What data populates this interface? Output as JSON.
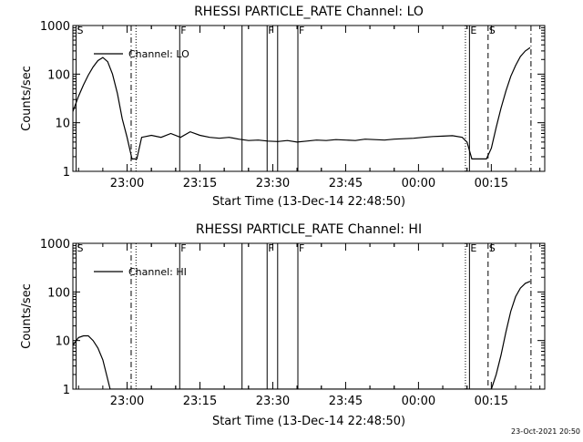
{
  "chart_data": [
    {
      "type": "line",
      "title": "RHESSI PARTICLE_RATE Channel: LO",
      "xlabel": "Start Time (13-Dec-14 22:48:50)",
      "ylabel": "Counts/sec",
      "yscale": "log",
      "ylim": [
        1,
        1000
      ],
      "xlim": [
        "22:48:50",
        "00:26:00"
      ],
      "x_ticks": [
        "23:00",
        "23:15",
        "23:30",
        "23:45",
        "00:00",
        "00:15"
      ],
      "y_ticks": [
        "1",
        "10",
        "100",
        "1000"
      ],
      "legend": {
        "label": "Channel: LO",
        "position": "top-left"
      },
      "grid": false,
      "event_markers": [
        {
          "time": "22:49:30",
          "style": "solid",
          "label": "S"
        },
        {
          "time": "23:00:50",
          "style": "dashdot",
          "label": ""
        },
        {
          "time": "23:01:50",
          "style": "dotted",
          "label": ""
        },
        {
          "time": "23:10:50",
          "style": "solid",
          "label": "F"
        },
        {
          "time": "23:23:40",
          "style": "solid",
          "label": ""
        },
        {
          "time": "23:28:50",
          "style": "solid",
          "label": "F"
        },
        {
          "time": "23:31:00",
          "style": "solid",
          "label": ""
        },
        {
          "time": "23:35:10",
          "style": "solid",
          "label": "F"
        },
        {
          "time": "00:09:40",
          "style": "dotted",
          "label": ""
        },
        {
          "time": "00:10:30",
          "style": "solid",
          "label": "E"
        },
        {
          "time": "00:14:20",
          "style": "dashed",
          "label": "S"
        },
        {
          "time": "00:23:10",
          "style": "dashdot",
          "label": ""
        }
      ],
      "series": [
        {
          "x": [
            "22:48:50",
            "22:50:00",
            "22:51:00",
            "22:52:00",
            "22:53:00",
            "22:54:00",
            "22:55:00",
            "22:56:00",
            "22:57:00",
            "22:58:00",
            "22:59:00",
            "23:00:00",
            "23:01:00",
            "23:02:00",
            "23:03:00",
            "23:05:00",
            "23:07:00",
            "23:09:00",
            "23:11:00",
            "23:13:00",
            "23:15:00",
            "23:17:00",
            "23:19:00",
            "23:21:00",
            "23:23:00",
            "23:25:00",
            "23:27:00",
            "23:29:00",
            "23:31:00",
            "23:33:00",
            "23:35:00",
            "23:37:00",
            "23:39:00",
            "23:41:00",
            "23:43:00",
            "23:45:00",
            "23:47:00",
            "23:49:00",
            "23:51:00",
            "23:53:00",
            "23:55:00",
            "23:57:00",
            "23:59:00",
            "00:01:00",
            "00:03:00",
            "00:05:00",
            "00:07:00",
            "00:09:00",
            "00:10:00",
            "00:11:00",
            "00:12:00",
            "00:13:00",
            "00:14:00",
            "00:15:00",
            "00:16:00",
            "00:17:00",
            "00:18:00",
            "00:19:00",
            "00:20:00",
            "00:21:00",
            "00:22:00",
            "00:23:00"
          ],
          "y": [
            17,
            35,
            60,
            95,
            140,
            190,
            220,
            180,
            100,
            40,
            12,
            5,
            1.8,
            1.8,
            5,
            5.5,
            5,
            6,
            5,
            6.5,
            5.5,
            5,
            4.8,
            5,
            4.6,
            4.3,
            4.4,
            4.2,
            4.1,
            4.3,
            4.0,
            4.2,
            4.4,
            4.3,
            4.5,
            4.4,
            4.3,
            4.6,
            4.5,
            4.4,
            4.6,
            4.7,
            4.8,
            5,
            5.2,
            5.3,
            5.4,
            5,
            4,
            1.8,
            1.8,
            1.8,
            1.8,
            3,
            8,
            20,
            45,
            90,
            150,
            230,
            300,
            350
          ]
        }
      ]
    },
    {
      "type": "line",
      "title": "RHESSI PARTICLE_RATE Channel: HI",
      "xlabel": "Start Time (13-Dec-14 22:48:50)",
      "ylabel": "Counts/sec",
      "yscale": "log",
      "ylim": [
        1,
        1000
      ],
      "xlim": [
        "22:48:50",
        "00:26:00"
      ],
      "x_ticks": [
        "23:00",
        "23:15",
        "23:30",
        "23:45",
        "00:00",
        "00:15"
      ],
      "y_ticks": [
        "1",
        "10",
        "100",
        "1000"
      ],
      "legend": {
        "label": "Channel: HI",
        "position": "top-left"
      },
      "grid": false,
      "event_markers": [
        {
          "time": "22:49:30",
          "style": "solid",
          "label": "S"
        },
        {
          "time": "23:00:50",
          "style": "dashdot",
          "label": ""
        },
        {
          "time": "23:01:50",
          "style": "dotted",
          "label": ""
        },
        {
          "time": "23:10:50",
          "style": "solid",
          "label": "F"
        },
        {
          "time": "23:23:40",
          "style": "solid",
          "label": ""
        },
        {
          "time": "23:28:50",
          "style": "solid",
          "label": "F"
        },
        {
          "time": "23:31:00",
          "style": "solid",
          "label": ""
        },
        {
          "time": "23:35:10",
          "style": "solid",
          "label": "F"
        },
        {
          "time": "00:09:40",
          "style": "dotted",
          "label": ""
        },
        {
          "time": "00:10:30",
          "style": "solid",
          "label": "E"
        },
        {
          "time": "00:14:20",
          "style": "dashed",
          "label": "S"
        },
        {
          "time": "00:23:10",
          "style": "dashdot",
          "label": ""
        }
      ],
      "series": [
        {
          "x": [
            "22:48:50",
            "22:50:00",
            "22:51:00",
            "22:52:00",
            "22:53:00",
            "22:54:00",
            "22:55:00",
            "22:56:00",
            "22:56:30",
            "00:15:00",
            "00:16:00",
            "00:17:00",
            "00:18:00",
            "00:19:00",
            "00:20:00",
            "00:21:00",
            "00:22:00",
            "00:23:00"
          ],
          "y": [
            8,
            11.5,
            12.5,
            12.5,
            10,
            7,
            4,
            1.6,
            1.0,
            1.0,
            2,
            5,
            15,
            40,
            80,
            120,
            150,
            165
          ]
        }
      ]
    }
  ],
  "footer": {
    "timestamp": "23-Oct-2021 20:50"
  }
}
